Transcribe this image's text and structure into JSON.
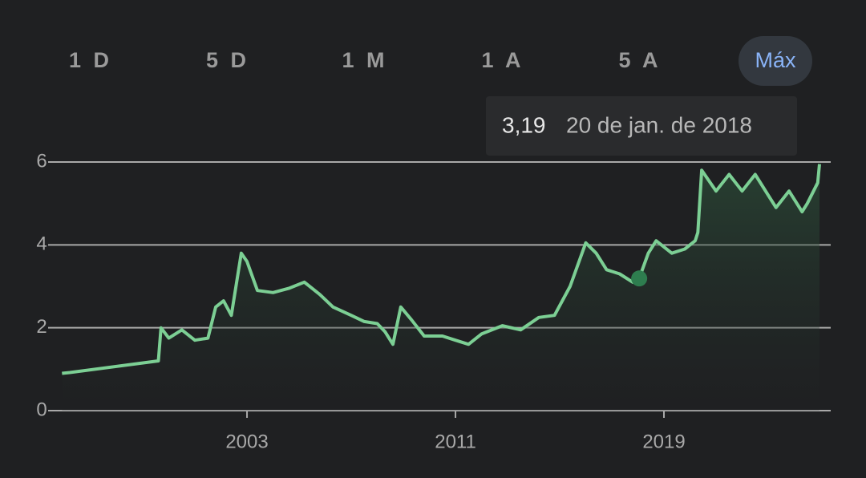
{
  "ranges": [
    "1 D",
    "5 D",
    "1 M",
    "1 A",
    "5 A",
    "Máx"
  ],
  "selected_range": 5,
  "chart_data": {
    "type": "line",
    "x": [
      1995.9,
      1996.2,
      1999.6,
      1999.7,
      2000.0,
      2000.5,
      2001.0,
      2001.5,
      2001.8,
      2002.1,
      2002.4,
      2002.78,
      2003.0,
      2003.4,
      2004.0,
      2004.6,
      2005.2,
      2005.8,
      2006.3,
      2007.0,
      2007.5,
      2008.0,
      2008.3,
      2008.6,
      2008.9,
      2009.3,
      2009.8,
      2010.5,
      2011.0,
      2011.5,
      2012.0,
      2012.8,
      2013.5,
      2014.2,
      2014.8,
      2015.4,
      2016.0,
      2016.4,
      2016.8,
      2017.3,
      2017.8,
      2018.05,
      2018.4,
      2018.7,
      2019.3,
      2019.8,
      2020.2,
      2020.3,
      2020.45,
      2021.0,
      2021.5,
      2022.0,
      2022.5,
      2023.0,
      2023.3,
      2023.8,
      2024.3,
      2024.5,
      2024.9,
      2024.97
    ],
    "series": [
      {
        "color": "#7ccf94",
        "values": [
          0.9,
          0.92,
          1.2,
          2.0,
          1.75,
          1.95,
          1.7,
          1.75,
          2.5,
          2.65,
          2.3,
          3.8,
          3.6,
          2.9,
          2.85,
          2.95,
          3.1,
          2.8,
          2.5,
          2.3,
          2.15,
          2.1,
          1.9,
          1.6,
          2.5,
          2.2,
          1.8,
          1.8,
          1.7,
          1.6,
          1.85,
          2.05,
          1.95,
          2.25,
          2.3,
          3.0,
          4.05,
          3.8,
          3.4,
          3.3,
          3.1,
          3.19,
          3.8,
          4.1,
          3.8,
          3.9,
          4.1,
          4.3,
          5.8,
          5.3,
          5.7,
          5.3,
          5.7,
          5.2,
          4.9,
          5.3,
          4.8,
          5.0,
          5.5,
          5.95
        ]
      }
    ],
    "xlim": [
      1995.86,
      2025.4
    ],
    "xticks": [
      2003,
      2011,
      2019
    ],
    "ylim": [
      0,
      6
    ],
    "yticks": [
      0,
      2,
      4,
      6
    ],
    "grid": true,
    "tooltip": {
      "value": 3.19,
      "label": "3,19",
      "date": "20 de jan. de 2018",
      "x": 2018.05
    }
  }
}
